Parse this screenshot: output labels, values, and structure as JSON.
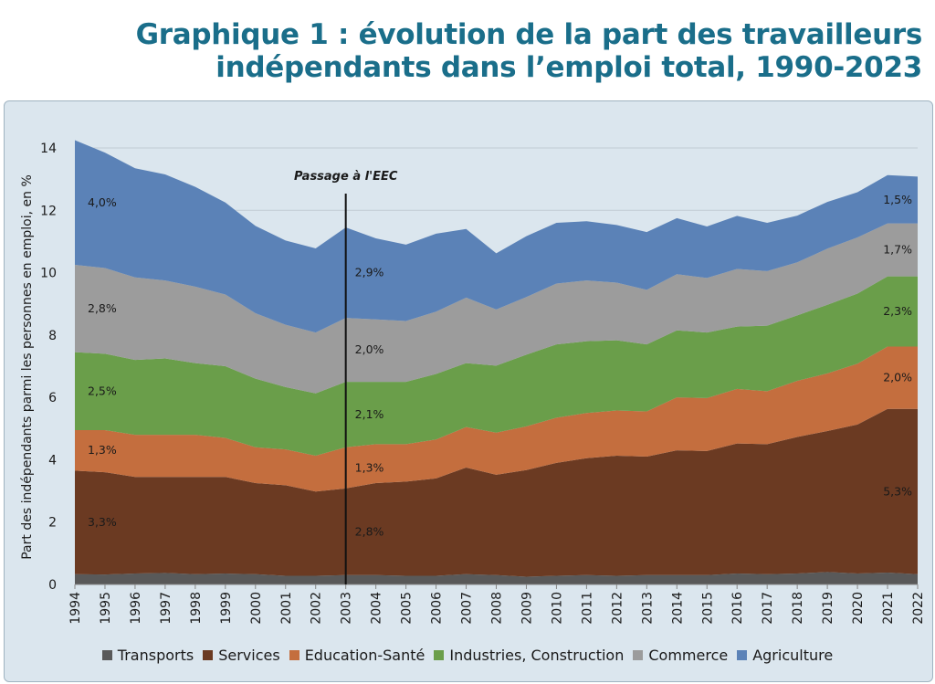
{
  "title": {
    "line1": "Graphique 1 : évolution de la part des travailleurs",
    "line2": "indépendants dans l’emploi total, 1990-2023"
  },
  "chart_data": {
    "type": "area",
    "stacked": true,
    "ylabel": "Part des indépendants parmi les personnes en emploi, en %",
    "ylim": [
      0,
      14
    ],
    "yticks": [
      0,
      2,
      4,
      6,
      8,
      10,
      12,
      14
    ],
    "grid": true,
    "legend_position": "bottom",
    "annotation": {
      "label": "Passage à l'EEC",
      "x": "2003"
    },
    "categories": [
      "1994",
      "1995",
      "1996",
      "1997",
      "1998",
      "1999",
      "2000",
      "2001",
      "2002",
      "2003",
      "2004",
      "2005",
      "2006",
      "2007",
      "2008",
      "2009",
      "2010",
      "2011",
      "2012",
      "2013",
      "2014",
      "2015",
      "2016",
      "2017",
      "2018",
      "2019",
      "2020",
      "2021",
      "2022"
    ],
    "series": [
      {
        "name": "Transports",
        "color": "#595959",
        "values": [
          0.33,
          0.32,
          0.35,
          0.37,
          0.33,
          0.35,
          0.33,
          0.28,
          0.28,
          0.3,
          0.3,
          0.28,
          0.28,
          0.33,
          0.3,
          0.25,
          0.28,
          0.3,
          0.28,
          0.3,
          0.3,
          0.3,
          0.35,
          0.33,
          0.35,
          0.4,
          0.35,
          0.38,
          0.33
        ]
      },
      {
        "name": "Services",
        "color": "#6b3a22",
        "values": [
          3.32,
          3.28,
          3.1,
          3.08,
          3.12,
          3.1,
          2.92,
          2.9,
          2.7,
          2.78,
          2.95,
          3.02,
          3.12,
          3.42,
          3.22,
          3.42,
          3.62,
          3.75,
          3.85,
          3.8,
          4.0,
          3.98,
          4.17,
          4.17,
          4.38,
          4.52,
          4.78,
          5.25,
          5.3
        ]
      },
      {
        "name": "Education-Santé",
        "color": "#c46e3e",
        "values": [
          1.3,
          1.35,
          1.35,
          1.35,
          1.35,
          1.25,
          1.15,
          1.15,
          1.15,
          1.32,
          1.25,
          1.2,
          1.25,
          1.3,
          1.35,
          1.4,
          1.45,
          1.45,
          1.45,
          1.45,
          1.7,
          1.7,
          1.75,
          1.7,
          1.8,
          1.85,
          1.95,
          2.0,
          2.0
        ]
      },
      {
        "name": "Industries, Construction",
        "color": "#6a9e4a",
        "values": [
          2.5,
          2.45,
          2.4,
          2.45,
          2.3,
          2.3,
          2.2,
          2.0,
          2.0,
          2.1,
          2.0,
          2.0,
          2.1,
          2.05,
          2.15,
          2.3,
          2.35,
          2.3,
          2.25,
          2.15,
          2.15,
          2.1,
          2.0,
          2.1,
          2.1,
          2.2,
          2.25,
          2.25,
          2.25
        ]
      },
      {
        "name": "Commerce",
        "color": "#9c9c9c",
        "values": [
          2.8,
          2.75,
          2.65,
          2.5,
          2.45,
          2.3,
          2.1,
          2.0,
          1.95,
          2.05,
          2.0,
          1.95,
          2.0,
          2.1,
          1.8,
          1.85,
          1.95,
          1.95,
          1.85,
          1.75,
          1.8,
          1.75,
          1.85,
          1.75,
          1.7,
          1.8,
          1.8,
          1.7,
          1.7
        ]
      },
      {
        "name": "Agriculture",
        "color": "#5b82b7",
        "values": [
          4.0,
          3.7,
          3.5,
          3.4,
          3.2,
          2.95,
          2.8,
          2.7,
          2.7,
          2.9,
          2.6,
          2.45,
          2.5,
          2.2,
          1.8,
          1.95,
          1.95,
          1.9,
          1.85,
          1.85,
          1.8,
          1.65,
          1.7,
          1.55,
          1.5,
          1.5,
          1.45,
          1.55,
          1.5
        ]
      }
    ],
    "data_labels": [
      {
        "series": "Agriculture",
        "text": "4,0%",
        "x": "1994"
      },
      {
        "series": "Commerce",
        "text": "2,8%",
        "x": "1994"
      },
      {
        "series": "Industries, Construction",
        "text": "2,5%",
        "x": "1994"
      },
      {
        "series": "Education-Santé",
        "text": "1,3%",
        "x": "1994"
      },
      {
        "series": "Services",
        "text": "3,3%",
        "x": "1994"
      },
      {
        "series": "Agriculture",
        "text": "2,9%",
        "x": "2003"
      },
      {
        "series": "Commerce",
        "text": "2,0%",
        "x": "2003"
      },
      {
        "series": "Industries, Construction",
        "text": "2,1%",
        "x": "2003"
      },
      {
        "series": "Education-Santé",
        "text": "1,3%",
        "x": "2003"
      },
      {
        "series": "Services",
        "text": "2,8%",
        "x": "2003"
      },
      {
        "series": "Agriculture",
        "text": "1,5%",
        "x": "2022"
      },
      {
        "series": "Commerce",
        "text": "1,7%",
        "x": "2022"
      },
      {
        "series": "Industries, Construction",
        "text": "2,3%",
        "x": "2022"
      },
      {
        "series": "Education-Santé",
        "text": "2,0%",
        "x": "2022"
      },
      {
        "series": "Services",
        "text": "5,3%",
        "x": "2022"
      }
    ]
  }
}
